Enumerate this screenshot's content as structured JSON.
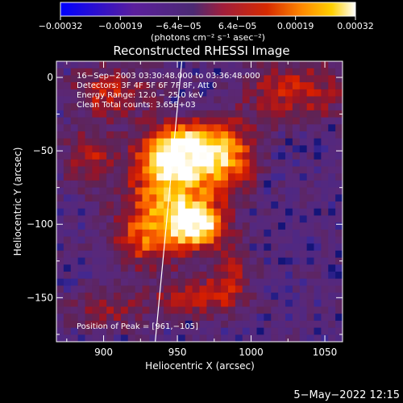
{
  "chart_data": {
    "type": "heatmap",
    "title": "Reconstructed RHESSI Image",
    "xlabel": "Heliocentric X (arcsec)",
    "ylabel": "Heliocentric Y (arcsec)",
    "xlim": [
      868,
      1062
    ],
    "ylim": [
      -180,
      11
    ],
    "x_ticks": [
      900,
      950,
      1000,
      1050
    ],
    "x_tick_labels": [
      "900",
      "950",
      "1000",
      "1050"
    ],
    "y_ticks": [
      0,
      -50,
      -100,
      -150
    ],
    "y_tick_labels": [
      "0",
      "−50",
      "−100",
      "−150"
    ],
    "colorbar": {
      "range": [
        -0.00032,
        0.00032
      ],
      "ticks": [
        -0.00032,
        -0.00019,
        -6.4e-05,
        6.4e-05,
        0.00019,
        0.00032
      ],
      "tick_labels": [
        "−0.00032",
        "−0.00019",
        "−6.4e−05",
        "6.4e−05",
        "0.00019",
        "0.00032"
      ],
      "units_label": "(photons cm⁻² s⁻¹ asec⁻²)",
      "colors": [
        "#0000ff",
        "#5b1f9c",
        "#4b2a73",
        "#a01e3c",
        "#d62a00",
        "#ff8a00",
        "#ffd000",
        "#ffffff"
      ]
    },
    "annotations": [
      "16−Sep−2003 03:30:48.000 to 03:36:48.000",
      "Detectors: 3F 4F 5F 6F 7F 8F, Att 0",
      "Energy Range: 12.0 − 25.0 keV",
      "Clean     Total counts: 3.65E+03"
    ],
    "peak_label": "Position of Peak = [961,−105]",
    "peak_position": [
      961,
      -105
    ],
    "emission_regions": [
      {
        "x": 955,
        "y": -50,
        "sx": 18,
        "sy": 12,
        "amp": 1.0
      },
      {
        "x": 963,
        "y": -100,
        "sx": 12,
        "sy": 10,
        "amp": 1.0
      },
      {
        "x": 945,
        "y": -75,
        "sx": 20,
        "sy": 22,
        "amp": 0.75
      },
      {
        "x": 985,
        "y": -55,
        "sx": 14,
        "sy": 18,
        "amp": 0.55
      },
      {
        "x": 930,
        "y": -110,
        "sx": 18,
        "sy": 14,
        "amp": 0.5
      },
      {
        "x": 1030,
        "y": -10,
        "sx": 25,
        "sy": 15,
        "amp": 0.45
      },
      {
        "x": 905,
        "y": -10,
        "sx": 20,
        "sy": 12,
        "amp": 0.45
      },
      {
        "x": 890,
        "y": -55,
        "sx": 12,
        "sy": 14,
        "amp": 0.4
      },
      {
        "x": 960,
        "y": -150,
        "sx": 25,
        "sy": 10,
        "amp": 0.35
      },
      {
        "x": 900,
        "y": -160,
        "sx": 18,
        "sy": 10,
        "amp": 0.3
      },
      {
        "x": 985,
        "y": -130,
        "sx": 10,
        "sy": 18,
        "amp": 0.35
      }
    ],
    "limb_line": [
      [
        953,
        11
      ],
      [
        935,
        -180
      ]
    ],
    "grid": false
  },
  "footer": {
    "date": "5−May−2022 12:15"
  }
}
